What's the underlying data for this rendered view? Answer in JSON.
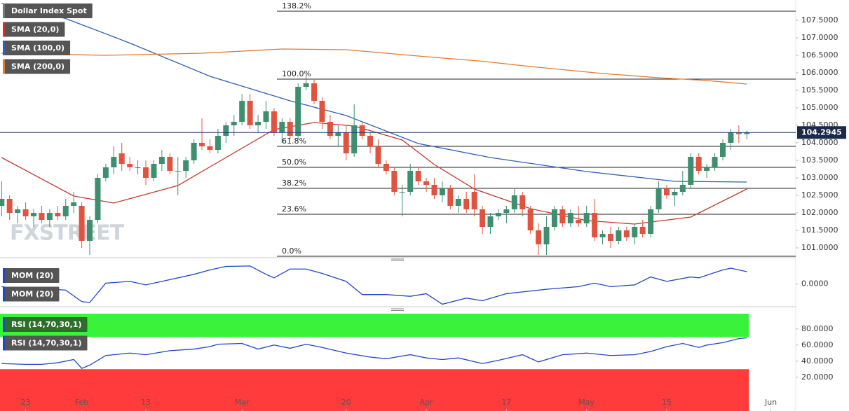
{
  "chart_data": [
    {
      "type": "candlestick",
      "candles": {
        "name": "Dollar Index Spot",
        "up_color": "#3d8f6f",
        "down_color": "#e2533f",
        "open": [
          102.2,
          102.4,
          102.0,
          102.1,
          101.9,
          102.0,
          101.8,
          102.0,
          101.9,
          102.2,
          102.2,
          101.2,
          101.8,
          103.0,
          103.3,
          103.7,
          103.4,
          103.3,
          103.3,
          103.0,
          103.4,
          103.6,
          103.2,
          103.2,
          103.5,
          104.0,
          103.9,
          103.8,
          104.2,
          104.5,
          104.6,
          105.2,
          104.5,
          104.6,
          104.9,
          104.3,
          104.6,
          104.2,
          105.6,
          105.7,
          105.2,
          104.6,
          104.2,
          104.3,
          103.7,
          104.5,
          104.2,
          103.9,
          103.4,
          103.2,
          102.6,
          102.6,
          103.2,
          102.9,
          102.8,
          102.5,
          102.7,
          102.2,
          102.4,
          102.6,
          102.1,
          101.6,
          101.9,
          102.0,
          102.1,
          102.5,
          102.1,
          101.5,
          101.1,
          101.6,
          102.1,
          101.7,
          101.8,
          101.7,
          102.0,
          101.3,
          101.4,
          101.2,
          101.5,
          101.3,
          101.6,
          101.4,
          102.1,
          102.7,
          102.5,
          102.6,
          102.8,
          103.6,
          103.2,
          103.3,
          103.6,
          104.0,
          104.3,
          104.25
        ],
        "high": [
          102.9,
          102.5,
          102.2,
          102.3,
          102.1,
          102.2,
          102.1,
          102.2,
          102.4,
          102.6,
          102.3,
          101.9,
          103.1,
          103.4,
          103.9,
          104.0,
          103.6,
          103.5,
          103.5,
          103.5,
          103.8,
          103.7,
          103.6,
          103.6,
          104.1,
          104.7,
          104.1,
          104.4,
          104.6,
          104.8,
          105.4,
          105.4,
          104.8,
          105.2,
          105.0,
          104.7,
          104.7,
          105.7,
          105.9,
          105.8,
          105.3,
          104.8,
          104.5,
          104.5,
          105.1,
          104.6,
          104.3,
          104.1,
          103.5,
          103.3,
          102.8,
          103.4,
          103.3,
          103.0,
          103.0,
          102.9,
          102.8,
          102.5,
          102.6,
          103.1,
          102.2,
          102.0,
          102.1,
          102.2,
          102.7,
          102.6,
          102.2,
          101.7,
          101.9,
          102.2,
          102.2,
          102.1,
          102.2,
          102.2,
          102.4,
          101.5,
          101.6,
          101.6,
          101.6,
          101.7,
          101.8,
          102.2,
          102.9,
          102.8,
          102.7,
          103.2,
          103.7,
          103.7,
          103.4,
          103.7,
          104.1,
          104.4,
          104.5,
          104.35
        ],
        "low": [
          101.9,
          101.8,
          101.7,
          101.8,
          101.6,
          101.7,
          101.6,
          101.8,
          101.8,
          102.0,
          101.0,
          100.8,
          101.7,
          102.9,
          103.1,
          103.2,
          103.2,
          103.1,
          102.8,
          102.9,
          103.2,
          103.1,
          102.5,
          103.0,
          103.4,
          103.8,
          103.7,
          103.7,
          104.0,
          104.2,
          104.5,
          104.4,
          104.3,
          104.4,
          104.2,
          104.0,
          104.1,
          104.1,
          105.5,
          105.1,
          104.4,
          104.1,
          103.9,
          103.5,
          103.6,
          104.1,
          103.7,
          103.3,
          103.1,
          102.5,
          101.9,
          102.5,
          102.8,
          102.6,
          102.4,
          102.3,
          102.1,
          102.0,
          102.0,
          101.9,
          101.4,
          101.4,
          101.8,
          101.7,
          102.0,
          101.9,
          101.4,
          100.8,
          100.8,
          101.5,
          101.6,
          101.6,
          101.6,
          101.6,
          101.2,
          101.1,
          101.0,
          101.1,
          101.2,
          101.1,
          101.3,
          101.3,
          102.0,
          102.4,
          102.2,
          102.5,
          102.7,
          103.1,
          103.0,
          103.2,
          103.5,
          103.8,
          104.0,
          104.1
        ],
        "close": [
          102.4,
          102.0,
          102.1,
          101.9,
          102.0,
          101.8,
          102.0,
          101.9,
          102.2,
          102.3,
          101.2,
          101.8,
          103.0,
          103.3,
          103.6,
          103.4,
          103.3,
          103.3,
          103.0,
          103.4,
          103.6,
          103.2,
          103.2,
          103.5,
          104.0,
          103.9,
          103.8,
          104.2,
          104.5,
          104.6,
          105.2,
          104.5,
          104.6,
          104.9,
          104.3,
          104.6,
          104.2,
          105.6,
          105.7,
          105.2,
          104.6,
          104.2,
          104.3,
          103.7,
          104.5,
          104.2,
          103.9,
          103.4,
          103.2,
          102.6,
          102.6,
          103.2,
          102.9,
          102.8,
          102.5,
          102.7,
          102.2,
          102.4,
          102.1,
          102.1,
          101.6,
          101.9,
          102.0,
          102.1,
          102.5,
          102.1,
          101.5,
          101.1,
          101.6,
          102.1,
          101.7,
          102.0,
          101.7,
          102.0,
          101.3,
          101.4,
          101.2,
          101.5,
          101.3,
          101.6,
          101.4,
          102.1,
          102.7,
          102.5,
          102.6,
          102.8,
          103.6,
          103.2,
          103.3,
          103.6,
          104.0,
          104.3,
          104.25,
          104.29
        ]
      },
      "series": [
        {
          "name": "SMA (20,0)",
          "color": "#c0392b",
          "x": [
            0,
            9,
            14,
            22,
            28,
            34,
            39,
            44,
            50,
            54,
            59,
            66,
            73,
            79,
            86,
            93
          ],
          "values": [
            103.58,
            102.48,
            102.28,
            102.78,
            103.58,
            104.38,
            104.58,
            104.48,
            104.08,
            103.38,
            102.68,
            102.12,
            101.78,
            101.68,
            101.88,
            102.68
          ]
        },
        {
          "name": "SMA (100,0)",
          "color": "#2f5fb3",
          "x": [
            0,
            8,
            16,
            26,
            36,
            43,
            52,
            61,
            73,
            84,
            93
          ],
          "values": [
            107.98,
            107.55,
            106.85,
            105.9,
            105.2,
            104.78,
            103.98,
            103.58,
            103.18,
            102.9,
            102.88
          ]
        },
        {
          "name": "SMA (200,0)",
          "color": "#e07a2f",
          "x": [
            0,
            13,
            25,
            35,
            43,
            52,
            60,
            66,
            75,
            82,
            88,
            93
          ],
          "values": [
            106.56,
            106.5,
            106.56,
            106.68,
            106.66,
            106.48,
            106.33,
            106.18,
            105.98,
            105.86,
            105.78,
            105.68
          ]
        }
      ],
      "fib_levels": [
        {
          "label": "138.2%",
          "value": 107.76
        },
        {
          "label": "100.0%",
          "value": 105.82
        },
        {
          "label": "61.8%",
          "value": 103.9
        },
        {
          "label": "50.0%",
          "value": 103.3
        },
        {
          "label": "38.2%",
          "value": 102.7
        },
        {
          "label": "23.6%",
          "value": 101.96
        },
        {
          "label": "0.0%",
          "value": 100.76
        }
      ],
      "last_price": 104.2945,
      "watermark": "FXSTREET",
      "xlim": [
        -0.2,
        99.1
      ],
      "ylim": [
        100.74,
        108.08
      ],
      "yticks": [
        {
          "value": 101.0,
          "label": "101.0000"
        },
        {
          "value": 101.5,
          "label": "101.5000"
        },
        {
          "value": 102.0,
          "label": "102.0000"
        },
        {
          "value": 102.5,
          "label": "102.5000"
        },
        {
          "value": 103.0,
          "label": "103.0000"
        },
        {
          "value": 103.5,
          "label": "103.5000"
        },
        {
          "value": 104.0,
          "label": "104.0000"
        },
        {
          "value": 104.5,
          "label": "104.5000"
        },
        {
          "value": 105.0,
          "label": "105.0000"
        },
        {
          "value": 105.5,
          "label": "105.5000"
        },
        {
          "value": 106.0,
          "label": "106.0000"
        },
        {
          "value": 106.5,
          "label": "106.5000"
        },
        {
          "value": 107.0,
          "label": "107.0000"
        },
        {
          "value": 107.5,
          "label": "107.5000"
        }
      ]
    },
    {
      "type": "line",
      "series": [
        {
          "name": "MOM (20)",
          "color": "#2146c7",
          "x": [
            0,
            3,
            5,
            8,
            10,
            11,
            13,
            16,
            18,
            21,
            24,
            26,
            28,
            31,
            33,
            34,
            36,
            38,
            40,
            43,
            45,
            48,
            51,
            53,
            55,
            58,
            60,
            63,
            66,
            68,
            72,
            74,
            76,
            79,
            81,
            83,
            86,
            87,
            90,
            91,
            93
          ],
          "values": [
            -0.3,
            -0.7,
            -0.5,
            -0.7,
            -2.0,
            -2.1,
            0.1,
            0.3,
            -0.1,
            0.5,
            1.1,
            1.6,
            2.0,
            2.05,
            1.1,
            0.7,
            1.7,
            1.7,
            1.2,
            0.3,
            -1.2,
            -1.2,
            -1.4,
            -1.1,
            -2.3,
            -1.6,
            -1.9,
            -1.1,
            -0.8,
            -0.6,
            -0.3,
            0.1,
            -0.3,
            -0.1,
            0.8,
            0.3,
            0.8,
            0.7,
            1.6,
            1.8,
            1.4
          ]
        }
      ],
      "xlim": [
        -0.2,
        99.1
      ],
      "ylim": [
        -2.5,
        2.2
      ],
      "yticks": [
        {
          "value": 0,
          "label": "0.0000"
        }
      ]
    },
    {
      "type": "line",
      "series": [
        {
          "name": "RSI (14,70,30,1)",
          "color": "#2146c7",
          "x": [
            0,
            3,
            5,
            7,
            9,
            10,
            11,
            13,
            16,
            18,
            21,
            24,
            26,
            27,
            30,
            32,
            34,
            36,
            38,
            40,
            43,
            46,
            48,
            51,
            53,
            55,
            57,
            60,
            62,
            65,
            67,
            70,
            73,
            76,
            79,
            81,
            83,
            85,
            87,
            88,
            90,
            92,
            93
          ],
          "values": [
            37,
            36,
            36,
            38,
            42,
            31,
            35,
            47,
            50,
            48,
            53,
            55,
            58,
            61,
            62,
            55,
            60,
            56,
            61,
            57,
            50,
            45,
            43,
            48,
            44,
            42,
            44,
            37,
            41,
            48,
            39,
            48,
            50,
            47,
            48,
            52,
            58,
            62,
            57,
            60,
            63,
            68,
            69
          ]
        }
      ],
      "overbought": 70,
      "overbought_color": "#39f239",
      "oversold": 30,
      "oversold_color": "#ff3b3b",
      "xlim": [
        -0.2,
        99.1
      ],
      "ylim": [
        -22,
        99
      ],
      "yticks": [
        {
          "value": 20,
          "label": "20.0000"
        },
        {
          "value": 40,
          "label": "40.0000"
        },
        {
          "value": 60,
          "label": "60.0000"
        },
        {
          "value": 80,
          "label": "80.0000"
        }
      ],
      "xticks": [
        {
          "value": 3,
          "label": "23"
        },
        {
          "value": 10,
          "label": "Feb"
        },
        {
          "value": 18,
          "label": "13"
        },
        {
          "value": 30,
          "label": "Mar"
        },
        {
          "value": 43,
          "label": "20"
        },
        {
          "value": 53,
          "label": "Apr"
        },
        {
          "value": 63,
          "label": "17"
        },
        {
          "value": 73,
          "label": "May"
        },
        {
          "value": 83,
          "label": "15"
        },
        {
          "value": 96,
          "label": "Jun"
        }
      ]
    }
  ]
}
